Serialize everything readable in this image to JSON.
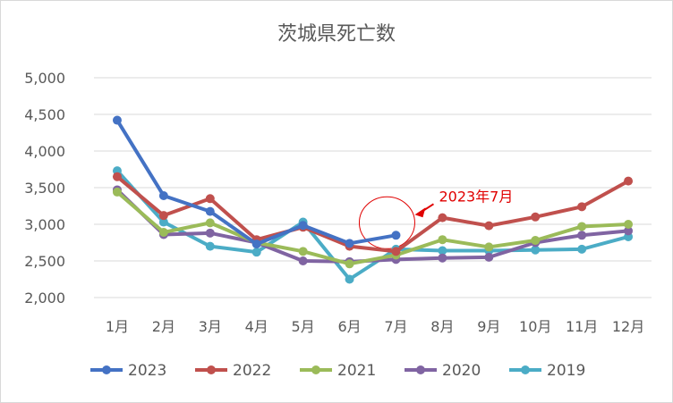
{
  "chart_data": {
    "type": "line",
    "title": "茨城県死亡数",
    "xlabel": "",
    "ylabel": "",
    "categories": [
      "1月",
      "2月",
      "3月",
      "4月",
      "5月",
      "6月",
      "7月",
      "8月",
      "9月",
      "10月",
      "11月",
      "12月"
    ],
    "ylim": [
      2000,
      5000
    ],
    "yticks": [
      "2,000",
      "2,500",
      "3,000",
      "3,500",
      "4,000",
      "4,500",
      "5,000"
    ],
    "grid": "horizontal",
    "legend_position": "bottom",
    "series": [
      {
        "name": "2023",
        "color": "#4472C4",
        "values": [
          4420,
          3390,
          3175,
          2730,
          2985,
          2740,
          2850,
          null,
          null,
          null,
          null,
          null
        ]
      },
      {
        "name": "2022",
        "color": "#C0504D",
        "values": [
          3650,
          3120,
          3350,
          2790,
          2960,
          2700,
          2630,
          3090,
          2980,
          3100,
          3240,
          3590
        ]
      },
      {
        "name": "2021",
        "color": "#9BBB59",
        "values": [
          3440,
          2890,
          3020,
          2750,
          2630,
          2460,
          2580,
          2790,
          2690,
          2780,
          2970,
          3000
        ]
      },
      {
        "name": "2020",
        "color": "#8064A2",
        "values": [
          3470,
          2860,
          2880,
          2750,
          2500,
          2490,
          2520,
          2540,
          2550,
          2750,
          2850,
          2910
        ]
      },
      {
        "name": "2019",
        "color": "#4BACC6",
        "values": [
          3730,
          3030,
          2700,
          2620,
          3030,
          2250,
          2660,
          2640,
          2640,
          2650,
          2660,
          2830
        ]
      }
    ],
    "annotation": {
      "text": "2023年7月",
      "color": "#E00000"
    }
  }
}
